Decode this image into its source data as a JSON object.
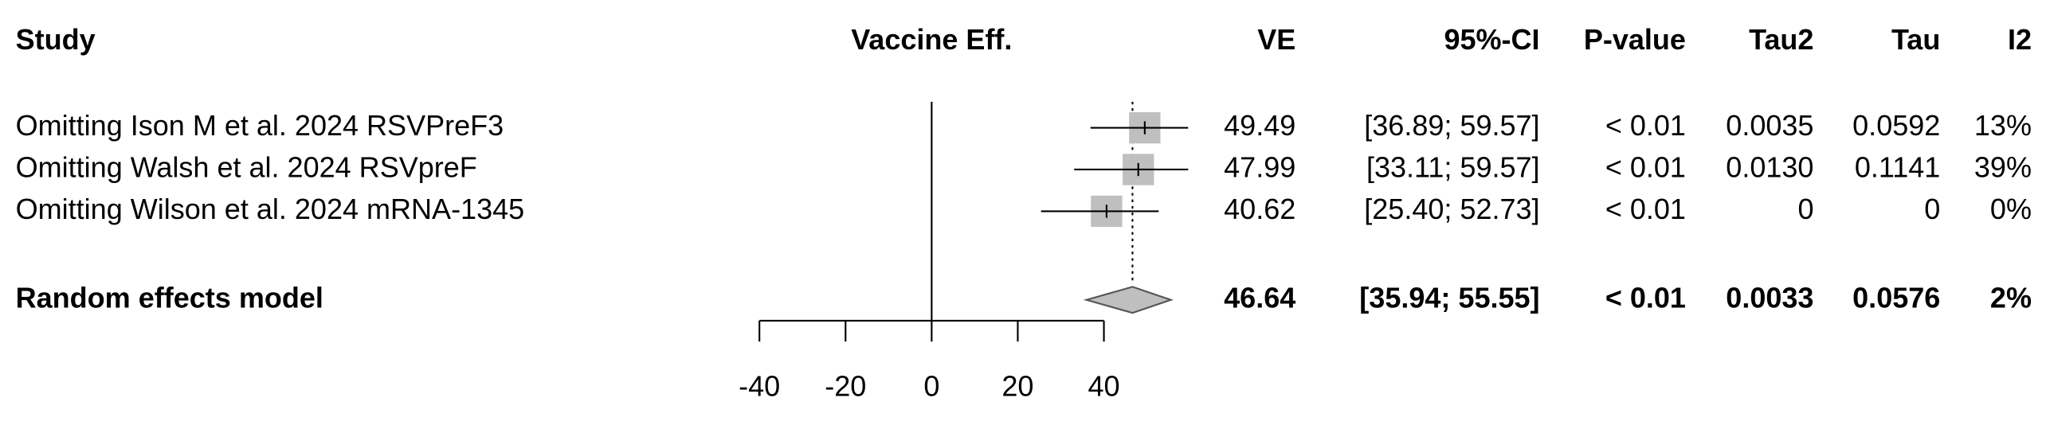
{
  "chart_data": {
    "type": "forest",
    "headers": {
      "study": "Study",
      "effect": "Vaccine Eff.",
      "ve": "VE",
      "ci": "95%-CI",
      "p": "P-value",
      "tau2": "Tau2",
      "tau": "Tau",
      "i2": "I2"
    },
    "studies": [
      {
        "name": "Omitting Ison M et al. 2024 RSVPreF3",
        "ve": 49.49,
        "ci_lower": 36.89,
        "ci_upper": 59.57,
        "ci_label": "[36.89; 59.57]",
        "p": "< 0.01",
        "tau2": "0.0035",
        "tau": "0.0592",
        "i2": "13%"
      },
      {
        "name": "Omitting Walsh et al. 2024 RSVpreF",
        "ve": 47.99,
        "ci_lower": 33.11,
        "ci_upper": 59.57,
        "ci_label": "[33.11; 59.57]",
        "p": "< 0.01",
        "tau2": "0.0130",
        "tau": "0.1141",
        "i2": "39%"
      },
      {
        "name": "Omitting Wilson et al. 2024 mRNA-1345",
        "ve": 40.62,
        "ci_lower": 25.4,
        "ci_upper": 52.73,
        "ci_label": "[25.40; 52.73]",
        "p": "< 0.01",
        "tau2": "0",
        "tau": "0",
        "i2": "0%"
      }
    ],
    "summary": {
      "name": "Random effects model",
      "ve": 46.64,
      "ci_lower": 35.94,
      "ci_upper": 55.55,
      "ci_label": "[35.94; 55.55]",
      "p": "< 0.01",
      "tau2": "0.0033",
      "tau": "0.0576",
      "i2": "2%"
    },
    "reference_line": 0,
    "xlim": [
      -40,
      40
    ],
    "xticks": [
      -40,
      -20,
      0,
      20,
      40
    ],
    "square_color": "#bfbfbf",
    "diamond_color": "#bfbfbf"
  }
}
